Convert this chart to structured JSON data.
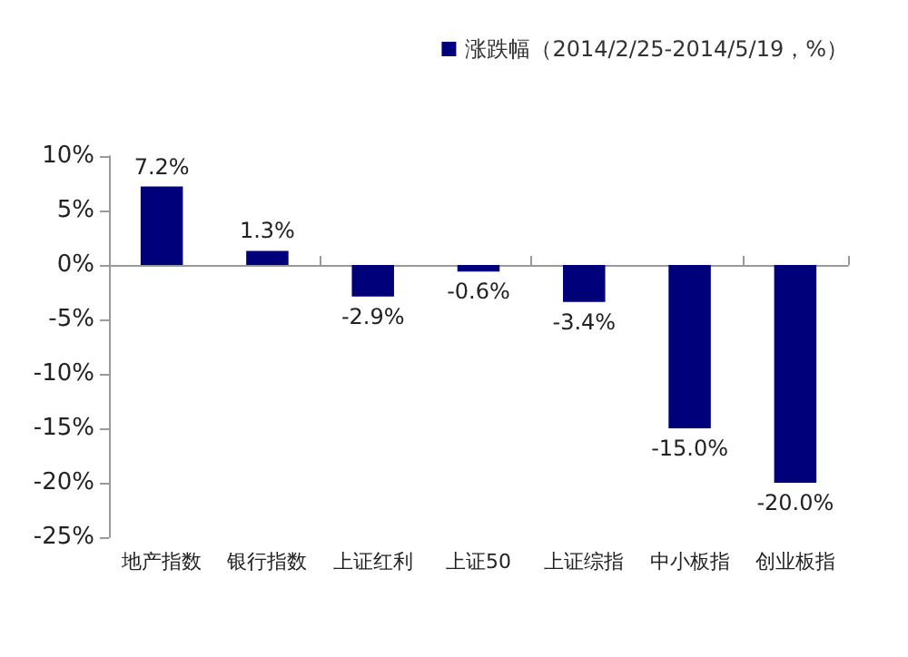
{
  "chart_data": {
    "type": "bar",
    "categories": [
      "地产指数",
      "银行指数",
      "上证红利",
      "上证50",
      "上证综指",
      "中小板指",
      "创业板指"
    ],
    "series": [
      {
        "name": "涨跌幅（2014/2/25-2014/5/19，%）",
        "color": "#00007a",
        "values": [
          7.2,
          1.3,
          -2.9,
          -0.6,
          -3.4,
          -15.0,
          -20.0
        ],
        "value_labels": [
          "7.2%",
          "1.3%",
          "-2.9%",
          "-0.6%",
          "-3.4%",
          "-15.0%",
          "-20.0%"
        ]
      }
    ],
    "ylim": [
      -25,
      10
    ],
    "yticks": [
      {
        "value": -25,
        "label": "-25%"
      },
      {
        "value": -20,
        "label": "-20%"
      },
      {
        "value": -15,
        "label": "-15%"
      },
      {
        "value": -10,
        "label": "-10%"
      },
      {
        "value": -5,
        "label": "-5%"
      },
      {
        "value": 0,
        "label": "0%"
      },
      {
        "value": 5,
        "label": "5%"
      },
      {
        "value": 10,
        "label": "10%"
      }
    ],
    "legend": "top right"
  }
}
